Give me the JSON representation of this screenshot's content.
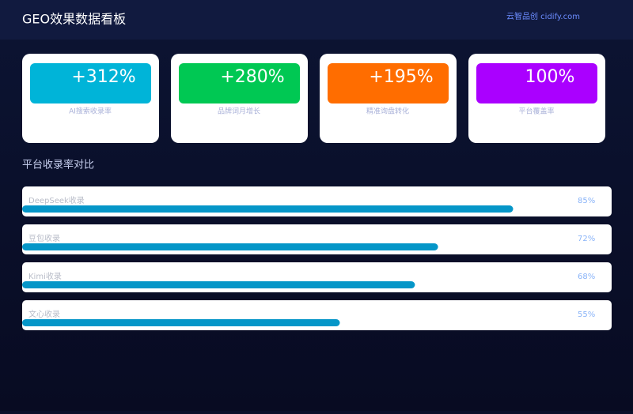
{
  "header": {
    "title": "GEO效果数据看板",
    "brand": "云智品创 cidify.com"
  },
  "cards": [
    {
      "value": "+312%",
      "label": "AI搜索收录率",
      "color": "#00b4d8"
    },
    {
      "value": "+280%",
      "label": "品牌词月增长",
      "color": "#00c853"
    },
    {
      "value": "+195%",
      "label": "精准询盘转化",
      "color": "#ff6d00"
    },
    {
      "value": "100%",
      "label": "平台覆盖率",
      "color": "#aa00ff"
    }
  ],
  "chart_data": {
    "type": "bar",
    "title": "平台收录率对比",
    "categories": [
      "DeepSeek收录",
      "豆包收录",
      "Kimi收录",
      "文心收录"
    ],
    "values": [
      85,
      72,
      68,
      55
    ],
    "value_labels": [
      "85%",
      "72%",
      "68%",
      "55%"
    ],
    "xlim": [
      0,
      100
    ],
    "color": "#0596c8"
  }
}
